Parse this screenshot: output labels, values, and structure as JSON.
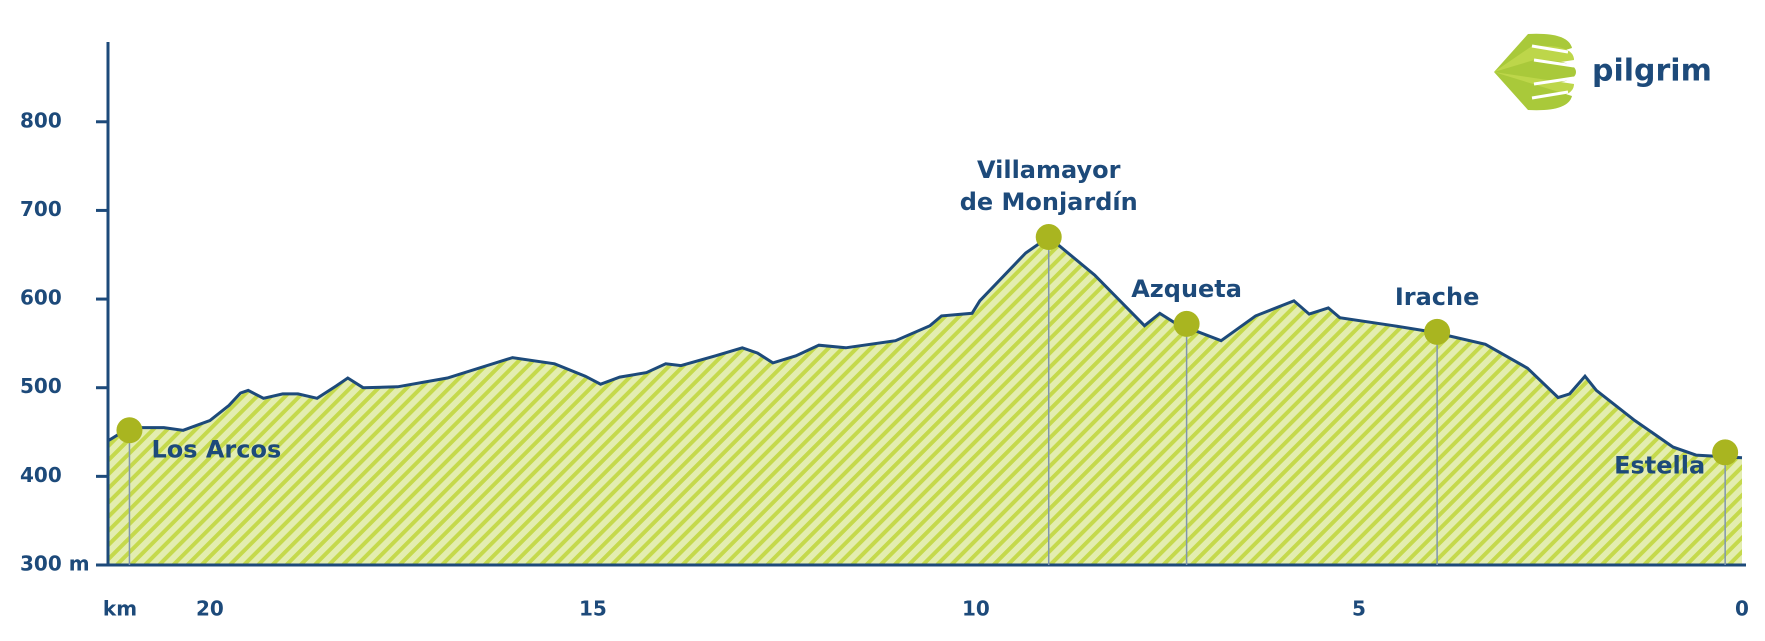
{
  "chart_data": {
    "type": "area",
    "logo": "pilgrim",
    "xlabel": "km",
    "x": [
      21.33,
      21.05,
      20.6,
      20.35,
      20.0,
      19.75,
      19.6,
      19.5,
      19.3,
      19.05,
      18.85,
      18.6,
      18.35,
      18.2,
      18.0,
      17.55,
      16.9,
      16.05,
      15.5,
      15.1,
      14.9,
      14.65,
      14.3,
      14.05,
      13.85,
      13.4,
      13.05,
      12.85,
      12.65,
      12.35,
      12.05,
      11.7,
      11.05,
      10.6,
      10.45,
      10.05,
      9.95,
      9.35,
      9.05,
      8.45,
      7.8,
      7.6,
      7.4,
      6.8,
      6.35,
      5.85,
      5.65,
      5.4,
      5.25,
      4.55,
      4.05,
      3.35,
      2.8,
      2.4,
      2.25,
      2.05,
      1.9,
      1.4,
      0.9,
      0.6,
      0.0
    ],
    "series": [
      {
        "color": "#1d4a7a",
        "fill": "#e3edb0",
        "hatch": "#c5d94c",
        "values": [
          440,
          455,
          455,
          452,
          463,
          480,
          494,
          497,
          488,
          493,
          493,
          488,
          502,
          511,
          500,
          501,
          511,
          534,
          527,
          513,
          504,
          512,
          517,
          527,
          525,
          536,
          545,
          539,
          528,
          536,
          548,
          545,
          553,
          570,
          581,
          584,
          598,
          652,
          670,
          627,
          570,
          584,
          573,
          553,
          581,
          598,
          583,
          590,
          579,
          570,
          563,
          549,
          522,
          489,
          493,
          513,
          497,
          463,
          433,
          424,
          421
        ]
      }
    ],
    "towns": [
      {
        "lines": [
          "Los Arcos"
        ],
        "km": 21.05,
        "elevation": 452
      },
      {
        "lines": [
          "Villamayor",
          "de Monjardín"
        ],
        "km": 9.05,
        "elevation": 670
      },
      {
        "lines": [
          "Azqueta"
        ],
        "km": 7.25,
        "elevation": 572
      },
      {
        "lines": [
          "Irache"
        ],
        "km": 3.98,
        "elevation": 563
      },
      {
        "lines": [
          "Estella"
        ],
        "km": 0.22,
        "elevation": 427
      }
    ],
    "town_color": "#a9b520",
    "xlim": [
      21.33,
      0
    ],
    "xticks": [
      20,
      15,
      10,
      5,
      0
    ],
    "ylim": [
      300,
      890
    ],
    "yticks": [
      {
        "value": 300,
        "label": "300 m"
      },
      400,
      500,
      600,
      700,
      800
    ]
  }
}
